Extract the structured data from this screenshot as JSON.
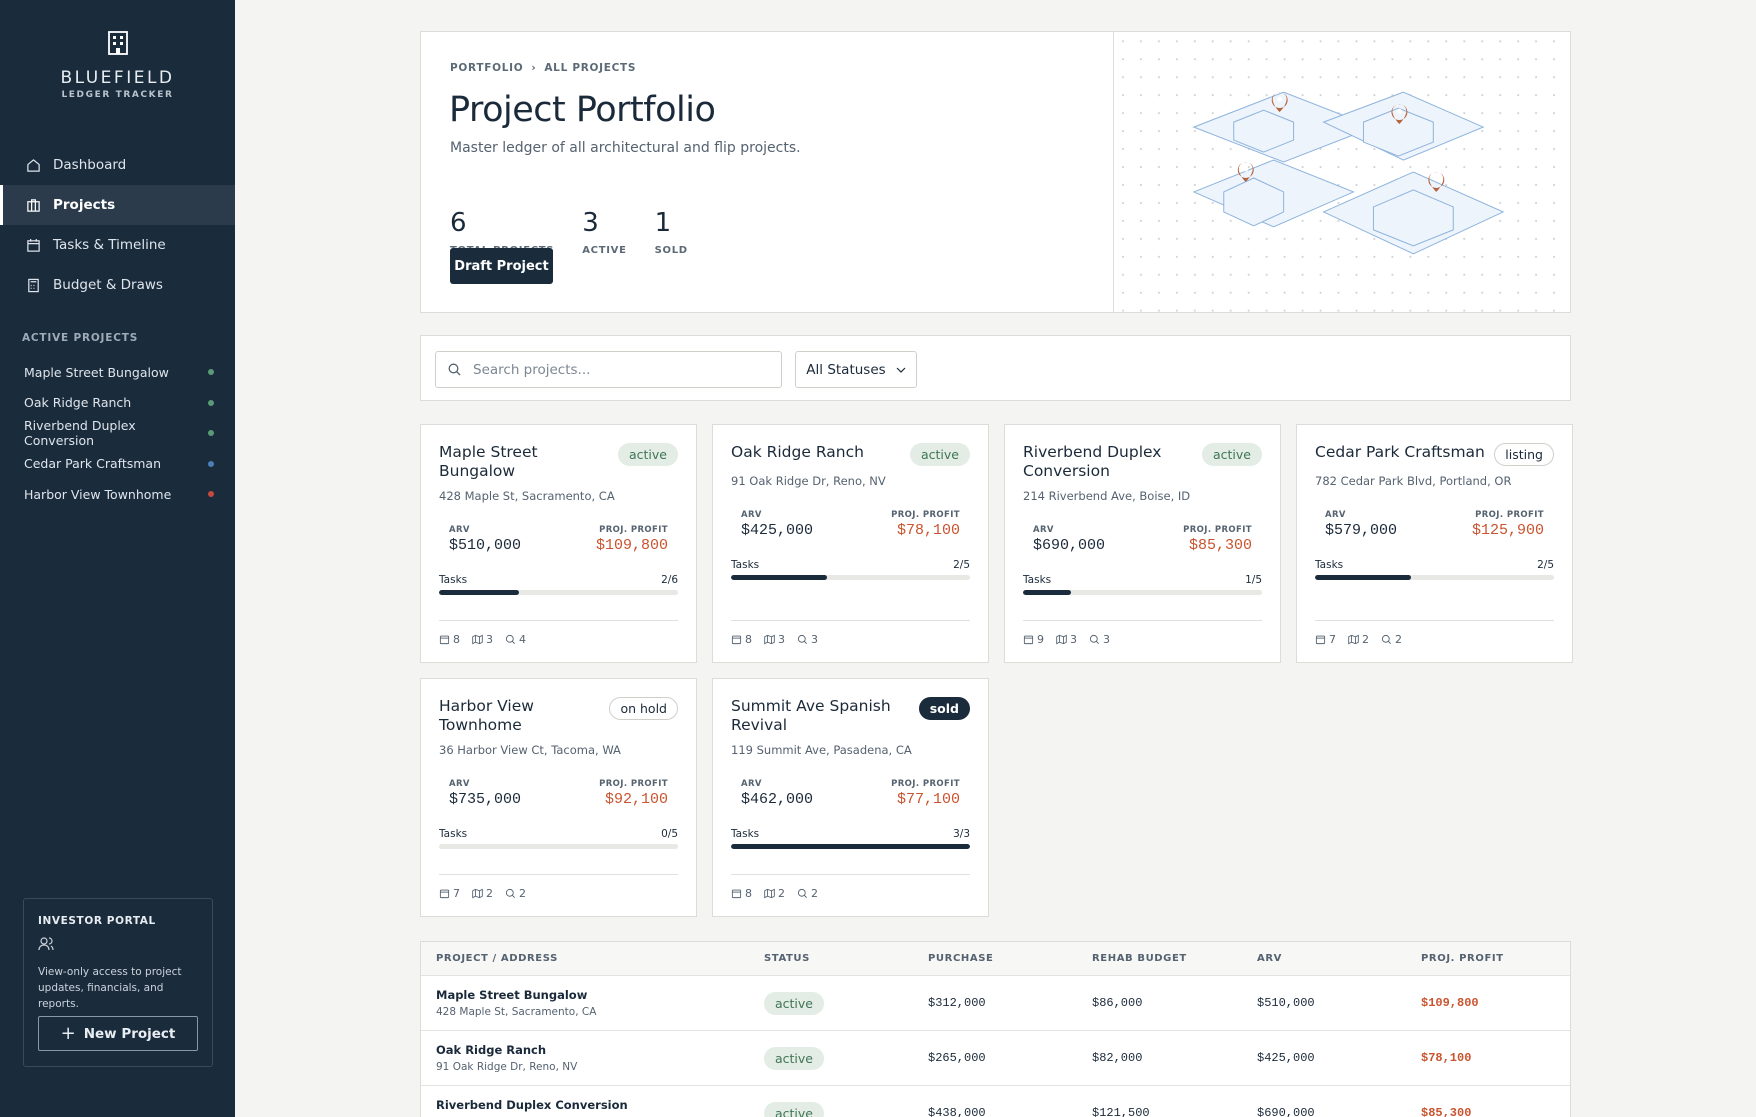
{
  "sidebar": {
    "brand": "BLUEFIELD",
    "tagline": "LEDGER TRACKER",
    "nav": [
      "Dashboard",
      "Projects",
      "Tasks & Timeline",
      "Budget & Draws"
    ],
    "section_title": "ACTIVE PROJECTS",
    "active_projects": [
      {
        "name": "Maple Street Bungalow",
        "color": "#5a9a78"
      },
      {
        "name": "Oak Ridge Ranch",
        "color": "#5a9a78"
      },
      {
        "name": "Riverbend Duplex Conversion",
        "color": "#5a9a78"
      },
      {
        "name": "Cedar Park Craftsman",
        "color": "#4b7fb8"
      },
      {
        "name": "Harbor View Townhome",
        "color": "#c44a3f"
      }
    ],
    "investor_portal": {
      "title": "INVESTOR PORTAL",
      "text": "View-only access to project updates, financials, and reports.",
      "button": "New Project"
    }
  },
  "header": {
    "breadcrumb": [
      "PORTFOLIO",
      "ALL PROJECTS"
    ],
    "title": "Project Portfolio",
    "subtitle": "Master ledger of all architectural and flip projects.",
    "stats": [
      {
        "value": 6,
        "label": "TOTAL PROJECTS"
      },
      {
        "value": 3,
        "label": "ACTIVE"
      },
      {
        "value": 1,
        "label": "SOLD"
      }
    ],
    "button": "Draft Project"
  },
  "filters": {
    "search_placeholder": "Search projects...",
    "status_select": "All Statuses"
  },
  "card_labels": {
    "arv": "ARV",
    "profit": "PROJ. PROFIT",
    "tasks": "Tasks"
  },
  "projects": [
    {
      "name": "Maple Street Bungalow",
      "status": "active",
      "address": "428 Maple St, Sacramento, CA",
      "arv": "$510,000",
      "profit": "$109,800",
      "tasks_done": 2,
      "tasks_total": 6,
      "counts": [
        8,
        3,
        4
      ]
    },
    {
      "name": "Oak Ridge Ranch",
      "status": "active",
      "address": "91 Oak Ridge Dr, Reno, NV",
      "arv": "$425,000",
      "profit": "$78,100",
      "tasks_done": 2,
      "tasks_total": 5,
      "counts": [
        8,
        3,
        3
      ]
    },
    {
      "name": "Riverbend Duplex Conversion",
      "status": "active",
      "address": "214 Riverbend Ave, Boise, ID",
      "arv": "$690,000",
      "profit": "$85,300",
      "tasks_done": 1,
      "tasks_total": 5,
      "counts": [
        9,
        3,
        3
      ]
    },
    {
      "name": "Cedar Park Craftsman",
      "status": "listing",
      "address": "782 Cedar Park Blvd, Portland, OR",
      "arv": "$579,000",
      "profit": "$125,900",
      "tasks_done": 2,
      "tasks_total": 5,
      "counts": [
        7,
        2,
        2
      ]
    },
    {
      "name": "Harbor View Townhome",
      "status": "on hold",
      "address": "36 Harbor View Ct, Tacoma, WA",
      "arv": "$735,000",
      "profit": "$92,100",
      "tasks_done": 0,
      "tasks_total": 5,
      "counts": [
        7,
        2,
        2
      ]
    },
    {
      "name": "Summit Ave Spanish Revival",
      "status": "sold",
      "address": "119 Summit Ave, Pasadena, CA",
      "arv": "$462,000",
      "profit": "$77,100",
      "tasks_done": 3,
      "tasks_total": 3,
      "counts": [
        8,
        2,
        2
      ]
    }
  ],
  "table": {
    "headers": [
      "PROJECT / ADDRESS",
      "STATUS",
      "PURCHASE",
      "REHAB BUDGET",
      "ARV",
      "PROJ. PROFIT"
    ],
    "rows": [
      {
        "purchase": "$312,000",
        "rehab_budget": "$86,000"
      },
      {
        "purchase": "$265,000",
        "rehab_budget": "$82,000"
      },
      {
        "purchase": "$438,000",
        "rehab_budget": "$121,500"
      }
    ]
  }
}
